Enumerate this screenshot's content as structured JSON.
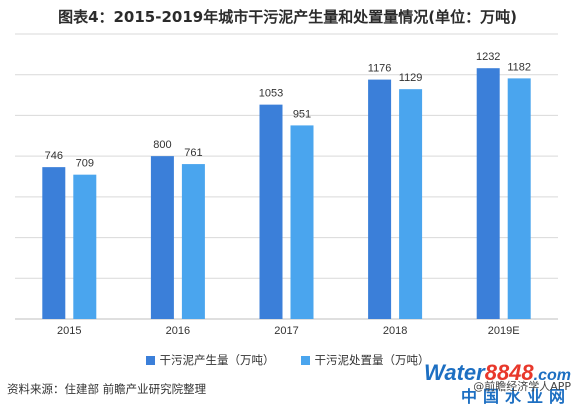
{
  "title": "图表4：2015-2019年城市干污泥产生量和处置量情况(单位：万吨)",
  "source": "资料来源：住建部 前瞻产业研究院整理",
  "colors": {
    "series1": "#3b7fd9",
    "series2": "#4aa5ee",
    "grid": "#d9d9d9",
    "axis": "#bfbfbf"
  },
  "logo": {
    "part1": "Water",
    "part2": "8848",
    "part3": ".com",
    "sub": "中国水业网",
    "overlay": "@前瞻经济学人APP"
  },
  "chart_data": {
    "type": "bar",
    "categories": [
      "2015",
      "2016",
      "2017",
      "2018",
      "2019E"
    ],
    "series": [
      {
        "name": "干污泥产生量（万吨）",
        "values": [
          746,
          800,
          1053,
          1176,
          1232
        ]
      },
      {
        "name": "干污泥处置量（万吨）",
        "values": [
          709,
          761,
          951,
          1129,
          1182
        ]
      }
    ],
    "ylim": [
      0,
      1400
    ],
    "grid": true,
    "legend_position": "bottom"
  }
}
